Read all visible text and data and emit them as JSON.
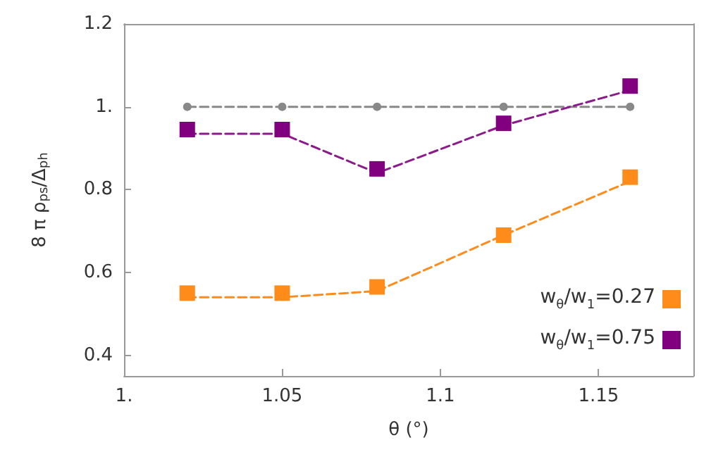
{
  "chart_data": {
    "type": "line",
    "xlabel": "θ (°)",
    "ylabel": "8 π ρ$_{ps}$/Δ$_{ph}$",
    "x": [
      1.02,
      1.05,
      1.08,
      1.12,
      1.16
    ],
    "series": [
      {
        "color": "#888888",
        "values": [
          1,
          1,
          1,
          1,
          1
        ],
        "marker": "circle",
        "line_style": "dashed"
      },
      {
        "color": "#8b1a8b",
        "values": [
          0.935,
          0.935,
          0.84,
          0.955,
          1.04
        ],
        "marker": "none",
        "line_style": "dashed"
      },
      {
        "color": "#ff8c1a",
        "values": [
          0.54,
          0.54,
          0.555,
          0.69,
          0.82
        ],
        "marker": "none",
        "line_style": "dashed"
      },
      {
        "type": "scatter",
        "name": "w$_{θ}$/w$_{1}$=0.27",
        "color": "#ff8c1a",
        "values": [
          0.55,
          0.55,
          0.565,
          0.69,
          0.83
        ],
        "marker": "square"
      },
      {
        "type": "scatter",
        "name": "w$_{θ}$/w$_{1}$=0.75",
        "color": "#800080",
        "values": [
          0.945,
          0.945,
          0.85,
          0.96,
          1.05
        ],
        "marker": "square"
      }
    ],
    "xlim": [
      1.0,
      1.18
    ],
    "xticks": [
      {
        "value": 1,
        "label": "1."
      },
      1.05,
      1.1,
      1.15
    ],
    "ylim": [
      0.35,
      1.2
    ],
    "yticks": [
      0.4,
      0.6,
      0.8,
      {
        "value": 1,
        "label": "1."
      },
      1.2
    ],
    "grid": false,
    "legend": "bottom right"
  }
}
